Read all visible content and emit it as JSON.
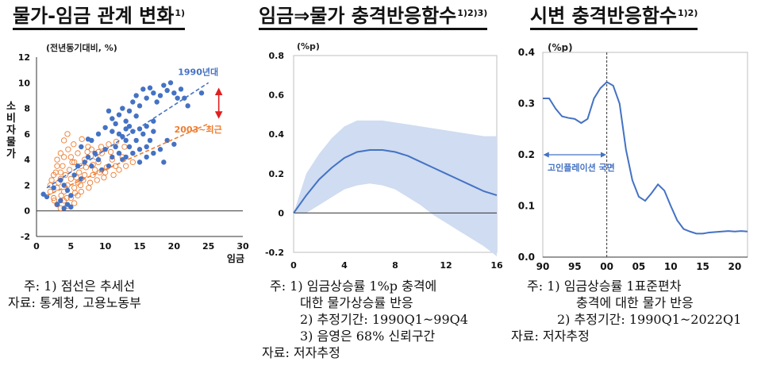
{
  "panels": [
    {
      "title": "물가-임금 관계 변화",
      "title_sup": "1)",
      "unit_label": "(전년동기대비, %)",
      "notes": [
        "주: 1) 점선은 추세선",
        "자료: 통계청, 고용노동부"
      ]
    },
    {
      "title": "임금⇒물가 충격반응함수",
      "title_sup": "1)2)3)",
      "unit_label": "(%p)",
      "notes": [
        "주: 1) 임금상승률 1%p 충격에",
        "대한 물가상승률 반응",
        "2) 추정기간: 1990Q1~99Q4",
        "3) 음영은 68% 신뢰구간",
        "자료: 저자추정"
      ]
    },
    {
      "title": "시변 충격반응함수",
      "title_sup": "1)2)",
      "unit_label": "(%p)",
      "notes": [
        "주: 1) 임금상승률 1표준편차",
        "충격에 대한 물가 반응",
        "2) 추정기간: 1990Q1~2022Q1",
        "자료: 저자추정"
      ]
    }
  ],
  "chart_data": [
    {
      "type": "scatter",
      "title": "물가-임금 관계 변화",
      "xlabel": "임금",
      "ylabel": "소비자물가",
      "xlim": [
        0,
        30
      ],
      "ylim": [
        -2,
        12
      ],
      "xticks": [
        0,
        5,
        10,
        15,
        20,
        25,
        30
      ],
      "yticks": [
        -2,
        0,
        2,
        4,
        6,
        8,
        10,
        12
      ],
      "annotations": [
        "1990년대",
        "2003~최근"
      ],
      "colors": {
        "series_1990s": "#4472c4",
        "series_2003": "#ed7d31",
        "arrow": "#e02020"
      },
      "series": [
        {
          "name": "1990년대",
          "trend": [
            [
              1.5,
              1.8
            ],
            [
              25,
              10.0
            ]
          ],
          "points": [
            [
              1.0,
              1.3
            ],
            [
              1.5,
              1.1
            ],
            [
              2.5,
              1.8
            ],
            [
              3.5,
              2.4
            ],
            [
              4.0,
              2.0
            ],
            [
              4.5,
              1.6
            ],
            [
              5.0,
              1.2
            ],
            [
              5.5,
              2.8
            ],
            [
              6.0,
              3.5
            ],
            [
              6.5,
              2.5
            ],
            [
              7.0,
              3.8
            ],
            [
              7.5,
              4.2
            ],
            [
              8.0,
              3.5
            ],
            [
              8.5,
              4.5
            ],
            [
              9.0,
              4.0
            ],
            [
              9.5,
              3.2
            ],
            [
              10.0,
              4.8
            ],
            [
              10.5,
              3.5
            ],
            [
              11.0,
              4.2
            ],
            [
              11.5,
              5.0
            ],
            [
              12.0,
              4.5
            ],
            [
              12.5,
              4.0
            ],
            [
              13.0,
              5.5
            ],
            [
              13.5,
              5.0
            ],
            [
              14.0,
              4.5
            ],
            [
              14.5,
              5.5
            ],
            [
              15.0,
              4.8
            ],
            [
              15.5,
              6.0
            ],
            [
              16.0,
              5.0
            ],
            [
              16.5,
              5.5
            ],
            [
              17.0,
              6.2
            ],
            [
              18.0,
              4.8
            ],
            [
              19.0,
              5.5
            ],
            [
              20.0,
              5.2
            ],
            [
              11.0,
              7.2
            ],
            [
              11.5,
              6.8
            ],
            [
              12.0,
              7.5
            ],
            [
              12.5,
              8.0
            ],
            [
              13.0,
              7.0
            ],
            [
              13.5,
              7.8
            ],
            [
              14.0,
              8.5
            ],
            [
              14.5,
              9.0
            ],
            [
              15.0,
              8.2
            ],
            [
              15.5,
              9.5
            ],
            [
              16.0,
              8.8
            ],
            [
              16.5,
              9.6
            ],
            [
              17.0,
              9.2
            ],
            [
              17.5,
              8.5
            ],
            [
              18.0,
              9.0
            ],
            [
              18.5,
              9.8
            ],
            [
              19.0,
              9.4
            ],
            [
              19.5,
              10.0
            ],
            [
              20.0,
              9.2
            ],
            [
              20.5,
              8.8
            ],
            [
              21.0,
              9.5
            ],
            [
              21.5,
              8.8
            ],
            [
              22.0,
              8.2
            ],
            [
              24.0,
              9.2
            ],
            [
              10.0,
              6.5
            ],
            [
              11.0,
              6.2
            ],
            [
              12.0,
              6.0
            ],
            [
              13.0,
              6.4
            ],
            [
              14.0,
              6.2
            ],
            [
              8.0,
              5.5
            ],
            [
              9.0,
              6.0
            ],
            [
              10.5,
              7.8
            ],
            [
              12.5,
              5.8
            ],
            [
              13.5,
              6.6
            ],
            [
              14.5,
              7.4
            ],
            [
              16.0,
              6.6
            ],
            [
              17.0,
              7.0
            ],
            [
              15.0,
              6.4
            ],
            [
              6.5,
              5.0
            ],
            [
              7.5,
              5.6
            ],
            [
              4.5,
              0.5
            ],
            [
              5.0,
              0.3
            ],
            [
              3.5,
              0.8
            ],
            [
              3.0,
              0.5
            ],
            [
              4.0,
              0.2
            ],
            [
              15.0,
              3.8
            ],
            [
              16.0,
              4.2
            ],
            [
              17.0,
              4.5
            ],
            [
              18.5,
              3.8
            ],
            [
              13.0,
              4.2
            ]
          ]
        },
        {
          "name": "2003~최근",
          "trend": [
            [
              1.5,
              1.2
            ],
            [
              25,
              6.8
            ]
          ],
          "points": [
            [
              2.0,
              2.0
            ],
            [
              2.5,
              2.8
            ],
            [
              3.0,
              3.5
            ],
            [
              3.5,
              4.5
            ],
            [
              4.0,
              5.5
            ],
            [
              4.5,
              6.0
            ],
            [
              5.0,
              4.2
            ],
            [
              5.5,
              3.8
            ],
            [
              6.0,
              4.5
            ],
            [
              6.5,
              3.5
            ],
            [
              7.0,
              4.0
            ],
            [
              7.5,
              5.0
            ],
            [
              8.0,
              4.8
            ],
            [
              8.5,
              3.2
            ],
            [
              9.0,
              3.8
            ],
            [
              9.5,
              4.5
            ],
            [
              10.0,
              3.0
            ],
            [
              10.5,
              5.2
            ],
            [
              11.0,
              4.0
            ],
            [
              11.5,
              3.5
            ],
            [
              12.0,
              3.2
            ],
            [
              12.5,
              4.2
            ],
            [
              13.0,
              3.5
            ],
            [
              14.0,
              3.8
            ],
            [
              2.0,
              1.5
            ],
            [
              2.5,
              1.0
            ],
            [
              3.0,
              1.8
            ],
            [
              3.5,
              2.5
            ],
            [
              4.0,
              1.5
            ],
            [
              4.5,
              2.0
            ],
            [
              5.0,
              2.5
            ],
            [
              5.5,
              1.8
            ],
            [
              6.0,
              2.2
            ],
            [
              6.5,
              1.5
            ],
            [
              7.0,
              2.8
            ],
            [
              3.0,
              0.5
            ],
            [
              3.5,
              0.2
            ],
            [
              4.0,
              0.8
            ],
            [
              4.5,
              0.4
            ],
            [
              5.0,
              1.0
            ],
            [
              5.5,
              0.6
            ],
            [
              6.0,
              1.2
            ],
            [
              2.8,
              3.0
            ],
            [
              3.2,
              2.2
            ],
            [
              3.8,
              3.5
            ],
            [
              4.2,
              2.8
            ],
            [
              4.8,
              3.2
            ],
            [
              5.2,
              3.8
            ],
            [
              5.8,
              2.6
            ],
            [
              6.2,
              3.0
            ],
            [
              6.8,
              2.4
            ],
            [
              7.2,
              3.4
            ],
            [
              7.8,
              2.2
            ],
            [
              8.2,
              2.8
            ],
            [
              8.8,
              2.4
            ],
            [
              9.2,
              3.0
            ],
            [
              9.8,
              2.6
            ],
            [
              3.0,
              4.0
            ],
            [
              3.5,
              3.0
            ],
            [
              4.0,
              4.2
            ],
            [
              2.2,
              2.4
            ],
            [
              4.6,
              4.8
            ],
            [
              5.4,
              5.2
            ],
            [
              6.6,
              5.6
            ],
            [
              7.4,
              4.6
            ],
            [
              8.6,
              4.2
            ],
            [
              9.4,
              5.0
            ],
            [
              10.8,
              4.6
            ],
            [
              11.6,
              5.4
            ],
            [
              12.8,
              5.0
            ],
            [
              3.6,
              1.2
            ],
            [
              4.4,
              1.0
            ],
            [
              5.6,
              1.4
            ],
            [
              6.4,
              2.0
            ],
            [
              7.6,
              1.8
            ],
            [
              2.6,
              0.8
            ],
            [
              8.2,
              3.6
            ],
            [
              10.2,
              3.4
            ],
            [
              11.2,
              2.8
            ],
            [
              9.0,
              4.6
            ]
          ]
        }
      ]
    },
    {
      "type": "line",
      "title": "임금⇒물가 충격반응함수",
      "xlim": [
        0,
        16
      ],
      "ylim": [
        -0.2,
        0.8
      ],
      "xticks": [
        0,
        4,
        8,
        12,
        16
      ],
      "yticks": [
        -0.2,
        0,
        0.2,
        0.4,
        0.6,
        0.8
      ],
      "ytick_labels": [
        "-0.2",
        "0",
        "0.2",
        "0.4",
        "0.6",
        "0.8"
      ],
      "colors": {
        "line": "#4472c4",
        "band": "#cfdcf1"
      },
      "x": [
        0,
        1,
        2,
        3,
        4,
        5,
        6,
        7,
        8,
        9,
        10,
        11,
        12,
        13,
        14,
        15,
        16
      ],
      "series": [
        {
          "values": [
            0,
            0.09,
            0.17,
            0.23,
            0.28,
            0.31,
            0.32,
            0.32,
            0.31,
            0.29,
            0.26,
            0.23,
            0.2,
            0.17,
            0.14,
            0.11,
            0.09
          ]
        }
      ],
      "band_upper": [
        0.0,
        0.2,
        0.3,
        0.38,
        0.44,
        0.47,
        0.47,
        0.47,
        0.46,
        0.45,
        0.44,
        0.43,
        0.42,
        0.41,
        0.4,
        0.39,
        0.39
      ],
      "band_lower": [
        0.0,
        0.0,
        0.04,
        0.08,
        0.12,
        0.14,
        0.15,
        0.14,
        0.12,
        0.08,
        0.04,
        -0.01,
        -0.05,
        -0.09,
        -0.13,
        -0.17,
        -0.22
      ]
    },
    {
      "type": "line",
      "title": "시변 충격반응함수",
      "xlim": [
        1990,
        2022
      ],
      "ylim": [
        0,
        0.4
      ],
      "xticks": [
        1990,
        1995,
        2000,
        2005,
        2010,
        2015,
        2020
      ],
      "xtick_labels": [
        "90",
        "95",
        "00",
        "05",
        "10",
        "15",
        "20"
      ],
      "yticks": [
        0,
        0.1,
        0.2,
        0.3,
        0.4
      ],
      "ytick_labels": [
        "0.0",
        "0.1",
        "0.2",
        "0.3",
        "0.4"
      ],
      "annotations": [
        "고인플레이션 국면"
      ],
      "colors": {
        "line": "#4472c4",
        "arrow": "#4472c4"
      },
      "vline": 2000,
      "x": [
        1990,
        1991,
        1992,
        1993,
        1994,
        1995,
        1996,
        1997,
        1998,
        1999,
        2000,
        2001,
        2002,
        2003,
        2004,
        2005,
        2006,
        2007,
        2008,
        2009,
        2010,
        2011,
        2012,
        2013,
        2014,
        2015,
        2016,
        2017,
        2018,
        2019,
        2020,
        2021,
        2022
      ],
      "series": [
        {
          "values": [
            0.31,
            0.31,
            0.29,
            0.275,
            0.272,
            0.27,
            0.262,
            0.27,
            0.31,
            0.33,
            0.342,
            0.335,
            0.3,
            0.21,
            0.15,
            0.118,
            0.11,
            0.125,
            0.142,
            0.13,
            0.1,
            0.072,
            0.055,
            0.05,
            0.046,
            0.046,
            0.048,
            0.049,
            0.05,
            0.051,
            0.05,
            0.051,
            0.05
          ]
        }
      ]
    }
  ]
}
